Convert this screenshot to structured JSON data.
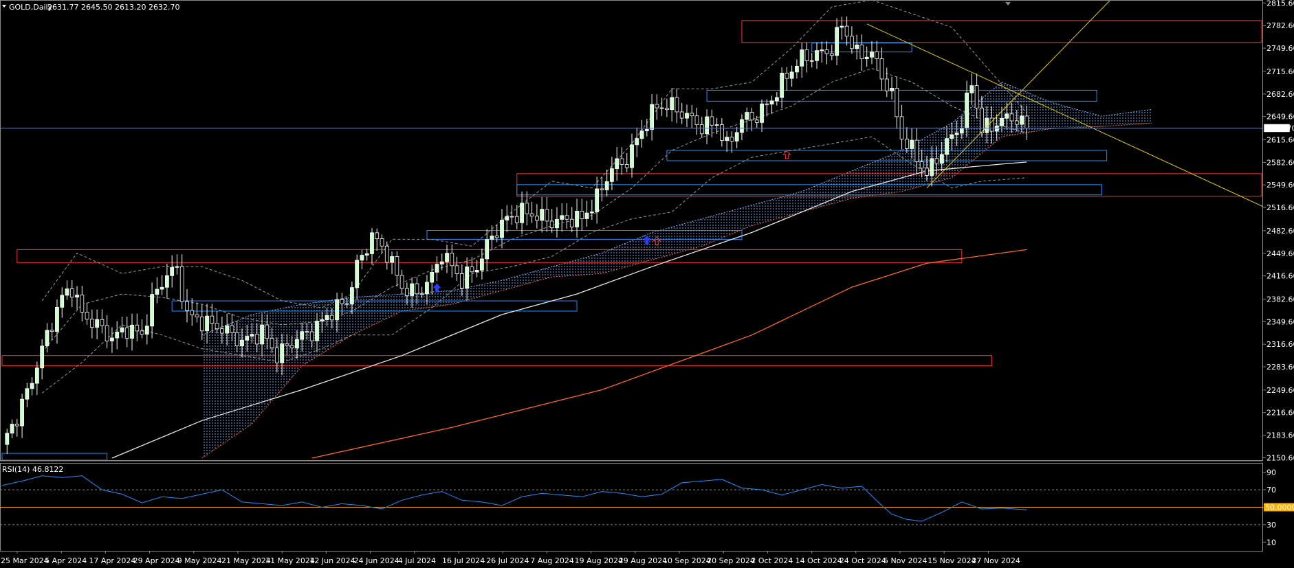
{
  "chart_header": {
    "menu_arrow": "triangle-down-icon",
    "symbol_label": "GOLD,Daily",
    "ohlc": "2631.77 2645.50 2613.20 2632.70"
  },
  "rsi_header": {
    "label": "RSI(14) 46.8122"
  },
  "current_price_label": "2632.70",
  "rsi_level_label": "50.0000",
  "colors": {
    "background": "#000000",
    "bull": "#ccffcc",
    "bear": "#ffffff",
    "axis_text": "#ffffff",
    "support_zone": "#1e90ff",
    "resistance_zone": "#ff3030",
    "trend_line": "#e6d200",
    "rsi_line": "#1e90ff",
    "rsi_mid": "#ffb000",
    "ma_slow": "#ff6a1a",
    "ma_fast": "#e8e8e8",
    "bands": "#9a9a9a",
    "cloud_up": "#7fb6ff",
    "cloud_down": "#ff6a4a"
  },
  "chart_data": {
    "type": "candlestick",
    "price_axis": {
      "ticks": [
        2815.6,
        2782.6,
        2749.6,
        2715.6,
        2682.6,
        2649.6,
        2615.6,
        2582.6,
        2549.6,
        2516.6,
        2482.6,
        2449.6,
        2416.6,
        2382.6,
        2349.6,
        2316.6,
        2283.6,
        2249.6,
        2216.6,
        2183.6,
        2150.6
      ],
      "range": [
        2147,
        2819
      ]
    },
    "rsi_axis": {
      "ticks": [
        90,
        70,
        50,
        30,
        10
      ],
      "range": [
        0,
        100
      ]
    },
    "date_labels": [
      "25 Mar 2024",
      "5 Apr 2024",
      "17 Apr 2024",
      "29 Apr 2024",
      "9 May 2024",
      "21 May 2024",
      "31 May 2024",
      "12 Jun 2024",
      "24 Jun 2024",
      "4 Jul 2024",
      "16 Jul 2024",
      "26 Jul 2024",
      "7 Aug 2024",
      "19 Aug 2024",
      "29 Aug 2024",
      "10 Sep 2024",
      "20 Sep 2024",
      "2 Oct 2024",
      "14 Oct 2024",
      "24 Oct 2024",
      "5 Nov 2024",
      "15 Nov 2024",
      "27 Nov 2024"
    ],
    "close_path": [
      [
        0,
        2170
      ],
      [
        3,
        2210
      ],
      [
        6,
        2265
      ],
      [
        9,
        2330
      ],
      [
        12,
        2385
      ],
      [
        14,
        2400
      ],
      [
        16,
        2360
      ],
      [
        19,
        2345
      ],
      [
        22,
        2325
      ],
      [
        25,
        2340
      ],
      [
        28,
        2330
      ],
      [
        30,
        2380
      ],
      [
        33,
        2420
      ],
      [
        35,
        2425
      ],
      [
        37,
        2360
      ],
      [
        40,
        2350
      ],
      [
        44,
        2340
      ],
      [
        48,
        2320
      ],
      [
        52,
        2335
      ],
      [
        55,
        2300
      ],
      [
        59,
        2325
      ],
      [
        62,
        2335
      ],
      [
        66,
        2365
      ],
      [
        69,
        2380
      ],
      [
        71,
        2430
      ],
      [
        74,
        2475
      ],
      [
        77,
        2450
      ],
      [
        80,
        2400
      ],
      [
        83,
        2390
      ],
      [
        86,
        2415
      ],
      [
        88,
        2450
      ],
      [
        92,
        2410
      ],
      [
        95,
        2430
      ],
      [
        98,
        2475
      ],
      [
        101,
        2500
      ],
      [
        104,
        2510
      ],
      [
        107,
        2505
      ],
      [
        110,
        2495
      ],
      [
        113,
        2500
      ],
      [
        116,
        2500
      ],
      [
        119,
        2530
      ],
      [
        122,
        2575
      ],
      [
        125,
        2585
      ],
      [
        128,
        2630
      ],
      [
        131,
        2665
      ],
      [
        134,
        2665
      ],
      [
        137,
        2650
      ],
      [
        140,
        2635
      ],
      [
        143,
        2640
      ],
      [
        145,
        2605
      ],
      [
        148,
        2645
      ],
      [
        151,
        2650
      ],
      [
        154,
        2675
      ],
      [
        157,
        2710
      ],
      [
        160,
        2735
      ],
      [
        163,
        2740
      ],
      [
        166,
        2748
      ],
      [
        168,
        2785
      ],
      [
        171,
        2740
      ],
      [
        174,
        2742
      ],
      [
        176,
        2710
      ],
      [
        178,
        2680
      ],
      [
        180,
        2620
      ],
      [
        183,
        2590
      ],
      [
        185,
        2565
      ],
      [
        188,
        2600
      ],
      [
        190,
        2620
      ],
      [
        192,
        2640
      ],
      [
        194,
        2700
      ],
      [
        196,
        2630
      ],
      [
        199,
        2640
      ],
      [
        202,
        2650
      ],
      [
        205,
        2632.7
      ]
    ],
    "bands_upper": [
      [
        8,
        2380
      ],
      [
        15,
        2450
      ],
      [
        24,
        2420
      ],
      [
        32,
        2430
      ],
      [
        40,
        2430
      ],
      [
        48,
        2410
      ],
      [
        56,
        2380
      ],
      [
        64,
        2370
      ],
      [
        70,
        2390
      ],
      [
        78,
        2470
      ],
      [
        86,
        2470
      ],
      [
        94,
        2460
      ],
      [
        102,
        2510
      ],
      [
        110,
        2555
      ],
      [
        118,
        2545
      ],
      [
        126,
        2610
      ],
      [
        134,
        2690
      ],
      [
        142,
        2690
      ],
      [
        150,
        2700
      ],
      [
        158,
        2750
      ],
      [
        166,
        2810
      ],
      [
        174,
        2820
      ],
      [
        182,
        2800
      ],
      [
        190,
        2780
      ],
      [
        196,
        2730
      ],
      [
        205,
        2655
      ]
    ],
    "bands_mid": [
      [
        8,
        2305
      ],
      [
        16,
        2375
      ],
      [
        24,
        2390
      ],
      [
        32,
        2385
      ],
      [
        40,
        2375
      ],
      [
        48,
        2355
      ],
      [
        56,
        2345
      ],
      [
        64,
        2350
      ],
      [
        70,
        2365
      ],
      [
        78,
        2400
      ],
      [
        86,
        2425
      ],
      [
        94,
        2440
      ],
      [
        102,
        2470
      ],
      [
        110,
        2490
      ],
      [
        118,
        2505
      ],
      [
        126,
        2545
      ],
      [
        134,
        2600
      ],
      [
        142,
        2625
      ],
      [
        150,
        2645
      ],
      [
        158,
        2665
      ],
      [
        166,
        2700
      ],
      [
        174,
        2720
      ],
      [
        182,
        2700
      ],
      [
        190,
        2665
      ],
      [
        196,
        2645
      ],
      [
        205,
        2625
      ]
    ],
    "bands_lower": [
      [
        8,
        2245
      ],
      [
        16,
        2290
      ],
      [
        24,
        2345
      ],
      [
        32,
        2330
      ],
      [
        40,
        2310
      ],
      [
        48,
        2300
      ],
      [
        56,
        2290
      ],
      [
        64,
        2310
      ],
      [
        70,
        2330
      ],
      [
        78,
        2330
      ],
      [
        86,
        2370
      ],
      [
        94,
        2420
      ],
      [
        102,
        2430
      ],
      [
        110,
        2445
      ],
      [
        118,
        2480
      ],
      [
        126,
        2500
      ],
      [
        134,
        2510
      ],
      [
        142,
        2560
      ],
      [
        150,
        2590
      ],
      [
        158,
        2600
      ],
      [
        166,
        2610
      ],
      [
        174,
        2620
      ],
      [
        182,
        2580
      ],
      [
        190,
        2545
      ],
      [
        196,
        2555
      ],
      [
        205,
        2560
      ]
    ],
    "ma_fast": [
      [
        22,
        2150
      ],
      [
        40,
        2205
      ],
      [
        60,
        2250
      ],
      [
        80,
        2300
      ],
      [
        100,
        2360
      ],
      [
        115,
        2390
      ],
      [
        130,
        2430
      ],
      [
        150,
        2480
      ],
      [
        170,
        2540
      ],
      [
        185,
        2570
      ],
      [
        200,
        2580
      ],
      [
        205,
        2583
      ]
    ],
    "ma_slow": [
      [
        62,
        2150
      ],
      [
        90,
        2195
      ],
      [
        120,
        2250
      ],
      [
        150,
        2330
      ],
      [
        170,
        2400
      ],
      [
        185,
        2435
      ],
      [
        200,
        2450
      ],
      [
        205,
        2455
      ]
    ],
    "cloud": [
      [
        40,
        2330,
        2150
      ],
      [
        50,
        2360,
        2200
      ],
      [
        60,
        2375,
        2285
      ],
      [
        70,
        2385,
        2330
      ],
      [
        80,
        2390,
        2365
      ],
      [
        90,
        2395,
        2375
      ],
      [
        100,
        2410,
        2395
      ],
      [
        110,
        2430,
        2415
      ],
      [
        120,
        2450,
        2420
      ],
      [
        130,
        2480,
        2440
      ],
      [
        140,
        2500,
        2460
      ],
      [
        150,
        2520,
        2490
      ],
      [
        160,
        2540,
        2510
      ],
      [
        170,
        2570,
        2530
      ],
      [
        180,
        2600,
        2540
      ],
      [
        190,
        2640,
        2560
      ],
      [
        200,
        2700,
        2620
      ],
      [
        210,
        2670,
        2632
      ],
      [
        220,
        2650,
        2635
      ],
      [
        230,
        2660,
        2640
      ]
    ],
    "zones": [
      {
        "kind": "resistance",
        "from_bar": 148,
        "to_bar": 254,
        "top": 2790,
        "bottom": 2758
      },
      {
        "kind": "support",
        "from_bar": 162,
        "to_bar": 182,
        "top": 2757,
        "bottom": 2744
      },
      {
        "kind": "support",
        "from_bar": 141,
        "to_bar": 219,
        "top": 2688,
        "bottom": 2672
      },
      {
        "kind": "support",
        "from_bar": 133,
        "to_bar": 221,
        "top": 2600,
        "bottom": 2585
      },
      {
        "kind": "resistance",
        "from_bar": 103,
        "to_bar": 254,
        "top": 2566,
        "bottom": 2533
      },
      {
        "kind": "support",
        "from_bar": 103,
        "to_bar": 220,
        "top": 2550,
        "bottom": 2535
      },
      {
        "kind": "support",
        "from_bar": 85,
        "to_bar": 148,
        "top": 2483,
        "bottom": 2470
      },
      {
        "kind": "resistance",
        "from_bar": 3,
        "to_bar": 192,
        "top": 2455,
        "bottom": 2436
      },
      {
        "kind": "support",
        "from_bar": 34,
        "to_bar": 115,
        "top": 2380,
        "bottom": 2365
      },
      {
        "kind": "resistance",
        "from_bar": 0,
        "to_bar": 198,
        "top": 2300,
        "bottom": 2285
      },
      {
        "kind": "support",
        "from_bar": 0,
        "to_bar": 21,
        "top": 2157,
        "bottom": 2147
      }
    ],
    "trend_lines": [
      {
        "from": [
          173,
          2785
        ],
        "to": [
          254,
          2512
        ]
      },
      {
        "from": [
          185,
          2545
        ],
        "to": [
          222,
          2822
        ]
      }
    ],
    "arrows": [
      {
        "bar": 87,
        "price": 2405,
        "dir": "up",
        "color": "#2a3cff"
      },
      {
        "bar": 129,
        "price": 2475,
        "dir": "up",
        "color": "#2a3cff"
      },
      {
        "bar": 131,
        "price": 2474,
        "dir": "up-hollow",
        "color": "#ff3030"
      },
      {
        "bar": 157,
        "price": 2600,
        "dir": "up-hollow",
        "color": "#ff3030"
      }
    ],
    "rsi_path": [
      [
        0,
        75
      ],
      [
        4,
        80
      ],
      [
        8,
        86
      ],
      [
        12,
        84
      ],
      [
        16,
        86
      ],
      [
        20,
        70
      ],
      [
        24,
        65
      ],
      [
        28,
        55
      ],
      [
        32,
        62
      ],
      [
        36,
        60
      ],
      [
        40,
        65
      ],
      [
        44,
        70
      ],
      [
        48,
        56
      ],
      [
        52,
        54
      ],
      [
        56,
        52
      ],
      [
        60,
        56
      ],
      [
        64,
        50
      ],
      [
        68,
        54
      ],
      [
        72,
        52
      ],
      [
        76,
        48
      ],
      [
        80,
        58
      ],
      [
        84,
        64
      ],
      [
        88,
        68
      ],
      [
        92,
        58
      ],
      [
        96,
        56
      ],
      [
        100,
        52
      ],
      [
        104,
        62
      ],
      [
        108,
        66
      ],
      [
        112,
        64
      ],
      [
        116,
        62
      ],
      [
        120,
        68
      ],
      [
        124,
        66
      ],
      [
        128,
        62
      ],
      [
        132,
        65
      ],
      [
        136,
        78
      ],
      [
        140,
        80
      ],
      [
        144,
        82
      ],
      [
        148,
        72
      ],
      [
        152,
        70
      ],
      [
        156,
        64
      ],
      [
        160,
        70
      ],
      [
        164,
        76
      ],
      [
        168,
        72
      ],
      [
        172,
        74
      ],
      [
        176,
        52
      ],
      [
        178,
        42
      ],
      [
        181,
        36
      ],
      [
        184,
        34
      ],
      [
        188,
        44
      ],
      [
        192,
        56
      ],
      [
        196,
        48
      ],
      [
        200,
        49
      ],
      [
        205,
        47
      ]
    ]
  }
}
